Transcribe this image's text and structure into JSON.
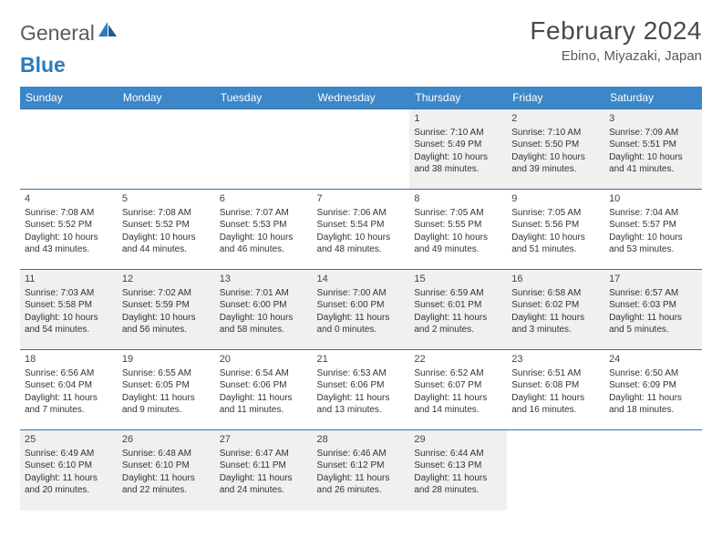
{
  "logo": {
    "word1": "General",
    "word2": "Blue",
    "text_color": "#5a5a5a",
    "accent_color": "#2b7bbd"
  },
  "header": {
    "month_title": "February 2024",
    "location": "Ebino, Miyazaki, Japan"
  },
  "colors": {
    "header_bg": "#3b87c8",
    "header_text": "#ffffff",
    "row_border": "#3b6fa0",
    "shaded_bg": "#f0f0f0",
    "body_text": "#333333"
  },
  "daynames": [
    "Sunday",
    "Monday",
    "Tuesday",
    "Wednesday",
    "Thursday",
    "Friday",
    "Saturday"
  ],
  "weeks": [
    [
      null,
      null,
      null,
      null,
      {
        "n": "1",
        "sr": "Sunrise: 7:10 AM",
        "ss": "Sunset: 5:49 PM",
        "d1": "Daylight: 10 hours",
        "d2": "and 38 minutes."
      },
      {
        "n": "2",
        "sr": "Sunrise: 7:10 AM",
        "ss": "Sunset: 5:50 PM",
        "d1": "Daylight: 10 hours",
        "d2": "and 39 minutes."
      },
      {
        "n": "3",
        "sr": "Sunrise: 7:09 AM",
        "ss": "Sunset: 5:51 PM",
        "d1": "Daylight: 10 hours",
        "d2": "and 41 minutes."
      }
    ],
    [
      {
        "n": "4",
        "sr": "Sunrise: 7:08 AM",
        "ss": "Sunset: 5:52 PM",
        "d1": "Daylight: 10 hours",
        "d2": "and 43 minutes."
      },
      {
        "n": "5",
        "sr": "Sunrise: 7:08 AM",
        "ss": "Sunset: 5:52 PM",
        "d1": "Daylight: 10 hours",
        "d2": "and 44 minutes."
      },
      {
        "n": "6",
        "sr": "Sunrise: 7:07 AM",
        "ss": "Sunset: 5:53 PM",
        "d1": "Daylight: 10 hours",
        "d2": "and 46 minutes."
      },
      {
        "n": "7",
        "sr": "Sunrise: 7:06 AM",
        "ss": "Sunset: 5:54 PM",
        "d1": "Daylight: 10 hours",
        "d2": "and 48 minutes."
      },
      {
        "n": "8",
        "sr": "Sunrise: 7:05 AM",
        "ss": "Sunset: 5:55 PM",
        "d1": "Daylight: 10 hours",
        "d2": "and 49 minutes."
      },
      {
        "n": "9",
        "sr": "Sunrise: 7:05 AM",
        "ss": "Sunset: 5:56 PM",
        "d1": "Daylight: 10 hours",
        "d2": "and 51 minutes."
      },
      {
        "n": "10",
        "sr": "Sunrise: 7:04 AM",
        "ss": "Sunset: 5:57 PM",
        "d1": "Daylight: 10 hours",
        "d2": "and 53 minutes."
      }
    ],
    [
      {
        "n": "11",
        "sr": "Sunrise: 7:03 AM",
        "ss": "Sunset: 5:58 PM",
        "d1": "Daylight: 10 hours",
        "d2": "and 54 minutes."
      },
      {
        "n": "12",
        "sr": "Sunrise: 7:02 AM",
        "ss": "Sunset: 5:59 PM",
        "d1": "Daylight: 10 hours",
        "d2": "and 56 minutes."
      },
      {
        "n": "13",
        "sr": "Sunrise: 7:01 AM",
        "ss": "Sunset: 6:00 PM",
        "d1": "Daylight: 10 hours",
        "d2": "and 58 minutes."
      },
      {
        "n": "14",
        "sr": "Sunrise: 7:00 AM",
        "ss": "Sunset: 6:00 PM",
        "d1": "Daylight: 11 hours",
        "d2": "and 0 minutes."
      },
      {
        "n": "15",
        "sr": "Sunrise: 6:59 AM",
        "ss": "Sunset: 6:01 PM",
        "d1": "Daylight: 11 hours",
        "d2": "and 2 minutes."
      },
      {
        "n": "16",
        "sr": "Sunrise: 6:58 AM",
        "ss": "Sunset: 6:02 PM",
        "d1": "Daylight: 11 hours",
        "d2": "and 3 minutes."
      },
      {
        "n": "17",
        "sr": "Sunrise: 6:57 AM",
        "ss": "Sunset: 6:03 PM",
        "d1": "Daylight: 11 hours",
        "d2": "and 5 minutes."
      }
    ],
    [
      {
        "n": "18",
        "sr": "Sunrise: 6:56 AM",
        "ss": "Sunset: 6:04 PM",
        "d1": "Daylight: 11 hours",
        "d2": "and 7 minutes."
      },
      {
        "n": "19",
        "sr": "Sunrise: 6:55 AM",
        "ss": "Sunset: 6:05 PM",
        "d1": "Daylight: 11 hours",
        "d2": "and 9 minutes."
      },
      {
        "n": "20",
        "sr": "Sunrise: 6:54 AM",
        "ss": "Sunset: 6:06 PM",
        "d1": "Daylight: 11 hours",
        "d2": "and 11 minutes."
      },
      {
        "n": "21",
        "sr": "Sunrise: 6:53 AM",
        "ss": "Sunset: 6:06 PM",
        "d1": "Daylight: 11 hours",
        "d2": "and 13 minutes."
      },
      {
        "n": "22",
        "sr": "Sunrise: 6:52 AM",
        "ss": "Sunset: 6:07 PM",
        "d1": "Daylight: 11 hours",
        "d2": "and 14 minutes."
      },
      {
        "n": "23",
        "sr": "Sunrise: 6:51 AM",
        "ss": "Sunset: 6:08 PM",
        "d1": "Daylight: 11 hours",
        "d2": "and 16 minutes."
      },
      {
        "n": "24",
        "sr": "Sunrise: 6:50 AM",
        "ss": "Sunset: 6:09 PM",
        "d1": "Daylight: 11 hours",
        "d2": "and 18 minutes."
      }
    ],
    [
      {
        "n": "25",
        "sr": "Sunrise: 6:49 AM",
        "ss": "Sunset: 6:10 PM",
        "d1": "Daylight: 11 hours",
        "d2": "and 20 minutes."
      },
      {
        "n": "26",
        "sr": "Sunrise: 6:48 AM",
        "ss": "Sunset: 6:10 PM",
        "d1": "Daylight: 11 hours",
        "d2": "and 22 minutes."
      },
      {
        "n": "27",
        "sr": "Sunrise: 6:47 AM",
        "ss": "Sunset: 6:11 PM",
        "d1": "Daylight: 11 hours",
        "d2": "and 24 minutes."
      },
      {
        "n": "28",
        "sr": "Sunrise: 6:46 AM",
        "ss": "Sunset: 6:12 PM",
        "d1": "Daylight: 11 hours",
        "d2": "and 26 minutes."
      },
      {
        "n": "29",
        "sr": "Sunrise: 6:44 AM",
        "ss": "Sunset: 6:13 PM",
        "d1": "Daylight: 11 hours",
        "d2": "and 28 minutes."
      },
      null,
      null
    ]
  ]
}
